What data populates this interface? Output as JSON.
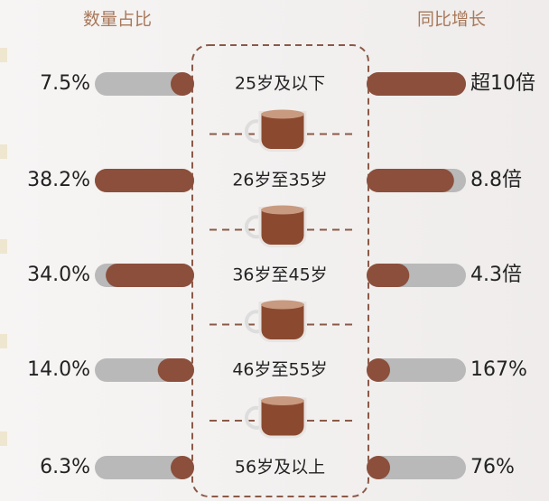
{
  "chart_data": {
    "type": "bar",
    "categories": [
      "25岁及以下",
      "26岁至35岁",
      "36岁至45岁",
      "46岁至55岁",
      "56岁及以上"
    ],
    "series": [
      {
        "name": "数量占比",
        "color": "#8b4f3c",
        "values": [
          7.5,
          38.2,
          34.0,
          14.0,
          6.3
        ],
        "value_labels": [
          "7.5%",
          "38.2%",
          "34.0%",
          "14.0%",
          "6.3%"
        ]
      },
      {
        "name": "同比增长",
        "color": "#8b4f3c",
        "values": [
          10,
          8.8,
          4.3,
          1.67,
          0.76
        ],
        "value_labels": [
          "超10倍",
          "8.8倍",
          "4.3倍",
          "167%",
          "76%"
        ]
      }
    ]
  }
}
